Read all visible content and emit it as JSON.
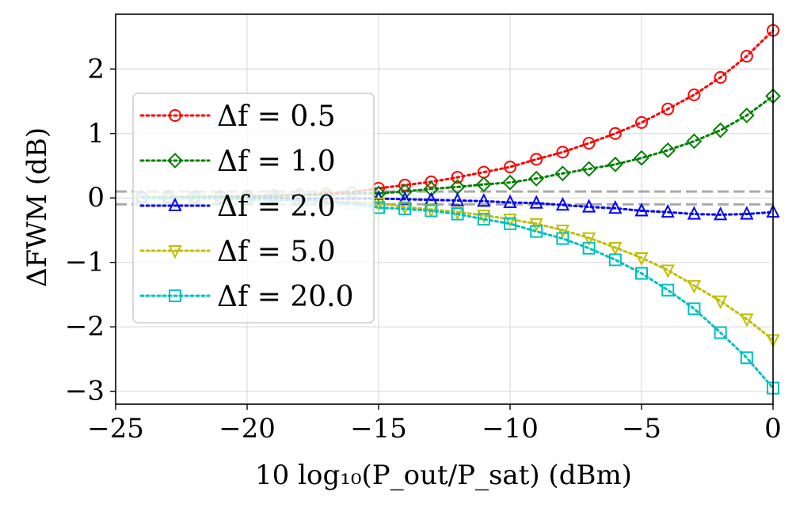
{
  "chart_data": {
    "type": "line",
    "title": "",
    "xlabel": "10 log₁₀(P_out/P_sat) (dBm)",
    "ylabel": "ΔFWM (dB)",
    "xlim": [
      -25,
      0
    ],
    "ylim": [
      -3.2,
      2.85
    ],
    "xticks": [
      -25,
      -20,
      -15,
      -10,
      -5,
      0
    ],
    "xtick_labels": [
      "−25",
      "−20",
      "−15",
      "−10",
      "−5",
      "0"
    ],
    "yticks": [
      -3,
      -2,
      -1,
      0,
      1,
      2
    ],
    "ytick_labels": [
      "−3",
      "−2",
      "−1",
      "0",
      "1",
      "2"
    ],
    "grid": true,
    "legend_position": "center-left",
    "reference_lines": [
      {
        "y": 0.1,
        "style": "dashed",
        "color": "#aaaaaa"
      },
      {
        "y": -0.1,
        "style": "dashed",
        "color": "#aaaaaa"
      }
    ],
    "x": [
      -24,
      -23,
      -22,
      -21,
      -20,
      -19,
      -18,
      -17,
      -16,
      -15,
      -14,
      -13,
      -12,
      -11,
      -10,
      -9,
      -8,
      -7,
      -6,
      -5,
      -4,
      -3,
      -2,
      -1,
      0
    ],
    "series": [
      {
        "name": "Δf = 0.5",
        "color": "#ff0000",
        "marker": "circle",
        "values": [
          0.01,
          0.01,
          0.02,
          0.02,
          0.03,
          0.04,
          0.05,
          0.07,
          0.09,
          0.15,
          0.2,
          0.25,
          0.32,
          0.4,
          0.48,
          0.6,
          0.71,
          0.85,
          1.0,
          1.17,
          1.38,
          1.6,
          1.87,
          2.2,
          2.6
        ]
      },
      {
        "name": "Δf = 1.0",
        "color": "#008000",
        "marker": "diamond",
        "values": [
          0.01,
          0.01,
          0.01,
          0.02,
          0.02,
          0.03,
          0.04,
          0.05,
          0.07,
          0.07,
          0.1,
          0.14,
          0.17,
          0.21,
          0.24,
          0.3,
          0.38,
          0.45,
          0.52,
          0.62,
          0.74,
          0.88,
          1.05,
          1.28,
          1.58
        ]
      },
      {
        "name": "Δf = 2.0",
        "color": "#0000ff",
        "marker": "triangle-up",
        "values": [
          0.0,
          0.0,
          0.0,
          0.0,
          0.0,
          0.0,
          -0.01,
          -0.01,
          -0.01,
          -0.01,
          -0.02,
          -0.03,
          -0.04,
          -0.05,
          -0.07,
          -0.08,
          -0.11,
          -0.14,
          -0.16,
          -0.2,
          -0.22,
          -0.25,
          -0.26,
          -0.25,
          -0.22
        ]
      },
      {
        "name": "Δf = 5.0",
        "color": "#bfbf00",
        "marker": "triangle-down",
        "values": [
          0.0,
          0.0,
          -0.01,
          -0.01,
          -0.02,
          -0.03,
          -0.04,
          -0.05,
          -0.07,
          -0.08,
          -0.14,
          -0.18,
          -0.22,
          -0.27,
          -0.33,
          -0.4,
          -0.5,
          -0.62,
          -0.77,
          -0.93,
          -1.12,
          -1.36,
          -1.6,
          -1.88,
          -2.2
        ]
      },
      {
        "name": "Δf = 20.0",
        "color": "#00bfbf",
        "marker": "square",
        "values": [
          0.0,
          -0.01,
          -0.01,
          -0.01,
          -0.02,
          -0.03,
          -0.04,
          -0.06,
          -0.08,
          -0.15,
          -0.17,
          -0.2,
          -0.25,
          -0.33,
          -0.4,
          -0.52,
          -0.63,
          -0.78,
          -0.96,
          -1.17,
          -1.43,
          -1.72,
          -2.09,
          -2.48,
          -2.95
        ]
      }
    ]
  }
}
